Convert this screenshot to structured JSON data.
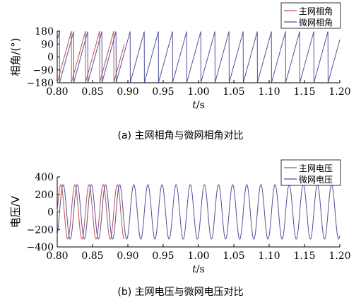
{
  "panels": [
    {
      "caption": "(a) 主网相角与微网相角对比",
      "chart_data": {
        "type": "line",
        "title": "",
        "xlabel": "t/s",
        "ylabel": "相角/(°)",
        "xlim": [
          0.8,
          1.2
        ],
        "ylim": [
          -180,
          180
        ],
        "x_ticks": [
          "0.80",
          "0.85",
          "0.90",
          "0.95",
          "1.00",
          "1.05",
          "1.10",
          "1.15",
          "1.20"
        ],
        "y_ticks": [
          "180",
          "90",
          "0",
          "−90",
          "−180"
        ],
        "legend": "top-right",
        "series": [
          {
            "name": "主网相角",
            "color": "#c0504d",
            "waveform": "sawtooth",
            "frequency_hz": 50,
            "amplitude": 180,
            "x_start": 0.8,
            "x_end": 0.895,
            "phase_deg_at_0.80": 0
          },
          {
            "name": "微网相角",
            "color": "#4f4f9f",
            "waveform": "sawtooth",
            "frequency_hz": 50,
            "amplitude": 180,
            "x_start": 0.8,
            "x_end": 1.2,
            "phase_deg_at_0.80": -60
          }
        ]
      }
    },
    {
      "caption": "(b) 主网电压与微网电压对比",
      "chart_data": {
        "type": "line",
        "title": "",
        "xlabel": "t/s",
        "ylabel": "电压/V",
        "xlim": [
          0.8,
          1.2
        ],
        "ylim": [
          -400,
          400
        ],
        "x_ticks": [
          "0.80",
          "0.85",
          "0.90",
          "0.95",
          "1.00",
          "1.05",
          "1.10",
          "1.15",
          "1.20"
        ],
        "y_ticks": [
          "400",
          "200",
          "0",
          "−200",
          "−400"
        ],
        "legend": "top-right",
        "series": [
          {
            "name": "主网电压",
            "color": "#c0504d",
            "waveform": "sine",
            "frequency_hz": 50,
            "amplitude": 311,
            "x_start": 0.8,
            "x_end": 0.895,
            "phase_deg_at_0.80": 0
          },
          {
            "name": "微网电压",
            "color": "#4f4f9f",
            "waveform": "sine",
            "frequency_hz": 50,
            "amplitude": 311,
            "x_start": 0.8,
            "x_end": 1.2,
            "phase_deg_at_0.80": -60
          }
        ]
      }
    }
  ]
}
